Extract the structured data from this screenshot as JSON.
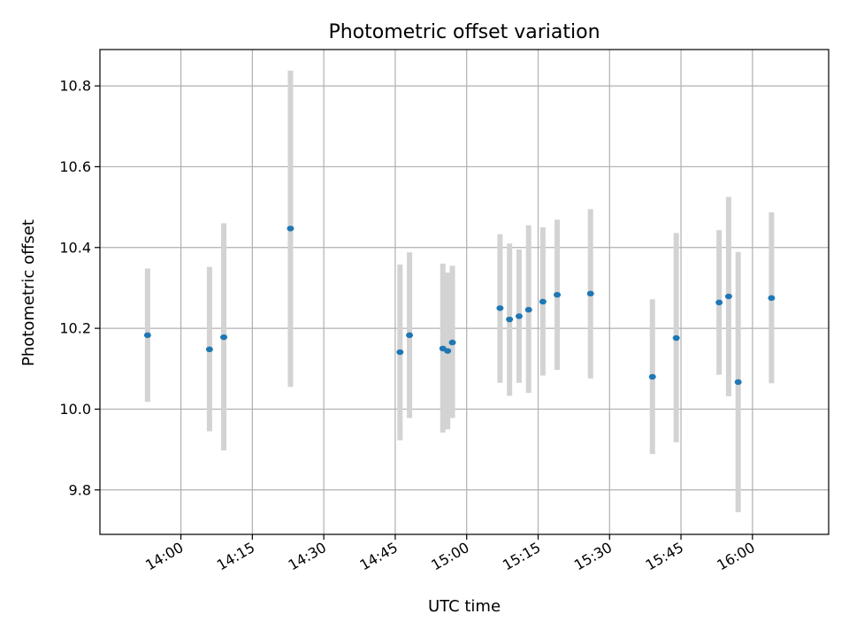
{
  "chart_data": {
    "type": "scatter",
    "title": "Photometric offset variation",
    "xlabel": "UTC time",
    "ylabel": "Photometric offset",
    "x_is_time": true,
    "xlim": [
      "13:43",
      "16:16"
    ],
    "ylim": [
      9.69,
      10.89
    ],
    "x_ticks": [
      "14:00",
      "14:15",
      "14:30",
      "14:45",
      "15:00",
      "15:15",
      "15:30",
      "15:45",
      "16:00"
    ],
    "y_ticks": [
      9.8,
      10.0,
      10.2,
      10.4,
      10.6,
      10.8
    ],
    "grid": true,
    "marker_color": "#1f77b4",
    "errorbar_color": "#d3d3d3",
    "points": [
      {
        "time": "13:53",
        "value": 10.183,
        "low": 10.018,
        "high": 10.348
      },
      {
        "time": "14:06",
        "value": 10.148,
        "low": 9.945,
        "high": 10.352
      },
      {
        "time": "14:09",
        "value": 10.178,
        "low": 9.898,
        "high": 10.46
      },
      {
        "time": "14:23",
        "value": 10.447,
        "low": 10.055,
        "high": 10.838
      },
      {
        "time": "14:46",
        "value": 10.141,
        "low": 9.923,
        "high": 10.358
      },
      {
        "time": "14:48",
        "value": 10.183,
        "low": 9.978,
        "high": 10.388
      },
      {
        "time": "14:55",
        "value": 10.15,
        "low": 9.942,
        "high": 10.36
      },
      {
        "time": "14:56",
        "value": 10.144,
        "low": 9.95,
        "high": 10.338
      },
      {
        "time": "14:57",
        "value": 10.165,
        "low": 9.978,
        "high": 10.355
      },
      {
        "time": "15:07",
        "value": 10.25,
        "low": 10.065,
        "high": 10.433
      },
      {
        "time": "15:09",
        "value": 10.222,
        "low": 10.033,
        "high": 10.41
      },
      {
        "time": "15:11",
        "value": 10.23,
        "low": 10.065,
        "high": 10.395
      },
      {
        "time": "15:13",
        "value": 10.246,
        "low": 10.04,
        "high": 10.455
      },
      {
        "time": "15:16",
        "value": 10.266,
        "low": 10.083,
        "high": 10.45
      },
      {
        "time": "15:19",
        "value": 10.283,
        "low": 10.097,
        "high": 10.469
      },
      {
        "time": "15:26",
        "value": 10.286,
        "low": 10.076,
        "high": 10.495
      },
      {
        "time": "15:39",
        "value": 10.08,
        "low": 9.889,
        "high": 10.272
      },
      {
        "time": "15:44",
        "value": 10.176,
        "low": 9.918,
        "high": 10.436
      },
      {
        "time": "15:53",
        "value": 10.264,
        "low": 10.085,
        "high": 10.443
      },
      {
        "time": "15:55",
        "value": 10.279,
        "low": 10.032,
        "high": 10.525
      },
      {
        "time": "15:57",
        "value": 10.067,
        "low": 9.745,
        "high": 10.389
      },
      {
        "time": "16:04",
        "value": 10.275,
        "low": 10.064,
        "high": 10.487
      }
    ]
  }
}
